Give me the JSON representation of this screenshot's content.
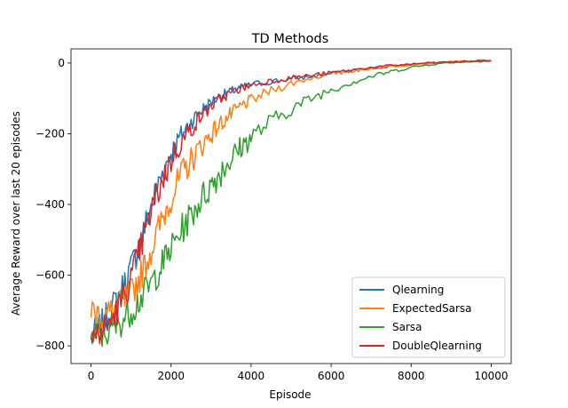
{
  "chart_data": {
    "type": "line",
    "title": "TD Methods",
    "xlabel": "Episode",
    "ylabel": "Average Reward over last 20 episodes",
    "xlim": [
      -500,
      10500
    ],
    "ylim": [
      -850,
      40
    ],
    "xticks": [
      0,
      2000,
      4000,
      6000,
      8000,
      10000
    ],
    "xtick_labels": [
      "0",
      "2000",
      "4000",
      "6000",
      "8000",
      "10000"
    ],
    "yticks": [
      -800,
      -600,
      -400,
      -200,
      0
    ],
    "ytick_labels": [
      "−800",
      "−600",
      "−400",
      "−200",
      "0"
    ],
    "grid": false,
    "legend": "lower-right",
    "series": [
      {
        "name": "Qlearning",
        "color": "#1f77b4",
        "x": [
          0,
          250,
          500,
          750,
          1000,
          1250,
          1500,
          1750,
          2000,
          2250,
          2500,
          2750,
          3000,
          3250,
          3500,
          3750,
          4000,
          4500,
          5000,
          5500,
          6000,
          6500,
          7000,
          7500,
          8000,
          8500,
          9000,
          9500,
          10000
        ],
        "values": [
          -780,
          -745,
          -700,
          -645,
          -580,
          -500,
          -405,
          -320,
          -255,
          -205,
          -165,
          -135,
          -110,
          -92,
          -80,
          -70,
          -62,
          -52,
          -45,
          -38,
          -30,
          -22,
          -15,
          -9,
          -4,
          0,
          3,
          5,
          7
        ]
      },
      {
        "name": "ExpectedSarsa",
        "color": "#ff7f0e",
        "x": [
          0,
          250,
          500,
          750,
          1000,
          1250,
          1500,
          1750,
          2000,
          2250,
          2500,
          2750,
          3000,
          3250,
          3500,
          3750,
          4000,
          4500,
          5000,
          5500,
          6000,
          6500,
          7000,
          7500,
          8000,
          8500,
          9000,
          9500,
          10000
        ],
        "values": [
          -700,
          -715,
          -705,
          -685,
          -650,
          -600,
          -530,
          -450,
          -380,
          -320,
          -275,
          -235,
          -200,
          -170,
          -145,
          -122,
          -105,
          -78,
          -58,
          -42,
          -30,
          -22,
          -15,
          -9,
          -4,
          0,
          3,
          5,
          7
        ]
      },
      {
        "name": "Sarsa",
        "color": "#2ca02c",
        "x": [
          0,
          250,
          500,
          750,
          1000,
          1250,
          1500,
          1750,
          2000,
          2250,
          2500,
          2750,
          3000,
          3250,
          3500,
          3750,
          4000,
          4500,
          5000,
          5500,
          6000,
          6500,
          7000,
          7500,
          8000,
          8500,
          9000,
          9500,
          10000
        ],
        "values": [
          -780,
          -770,
          -755,
          -730,
          -700,
          -665,
          -625,
          -575,
          -525,
          -475,
          -430,
          -385,
          -345,
          -305,
          -270,
          -238,
          -210,
          -165,
          -130,
          -100,
          -75,
          -55,
          -38,
          -24,
          -12,
          -4,
          2,
          5,
          7
        ]
      },
      {
        "name": "DoubleQlearning",
        "color": "#d62728",
        "x": [
          0,
          250,
          500,
          750,
          1000,
          1250,
          1500,
          1750,
          2000,
          2250,
          2500,
          2750,
          3000,
          3250,
          3500,
          3750,
          4000,
          4500,
          5000,
          5500,
          6000,
          6500,
          7000,
          7500,
          8000,
          8500,
          9000,
          9500,
          10000
        ],
        "values": [
          -780,
          -760,
          -730,
          -680,
          -610,
          -520,
          -420,
          -340,
          -275,
          -225,
          -185,
          -150,
          -122,
          -100,
          -84,
          -72,
          -62,
          -50,
          -42,
          -35,
          -28,
          -20,
          -13,
          -7,
          -3,
          1,
          3,
          5,
          7
        ]
      }
    ]
  }
}
